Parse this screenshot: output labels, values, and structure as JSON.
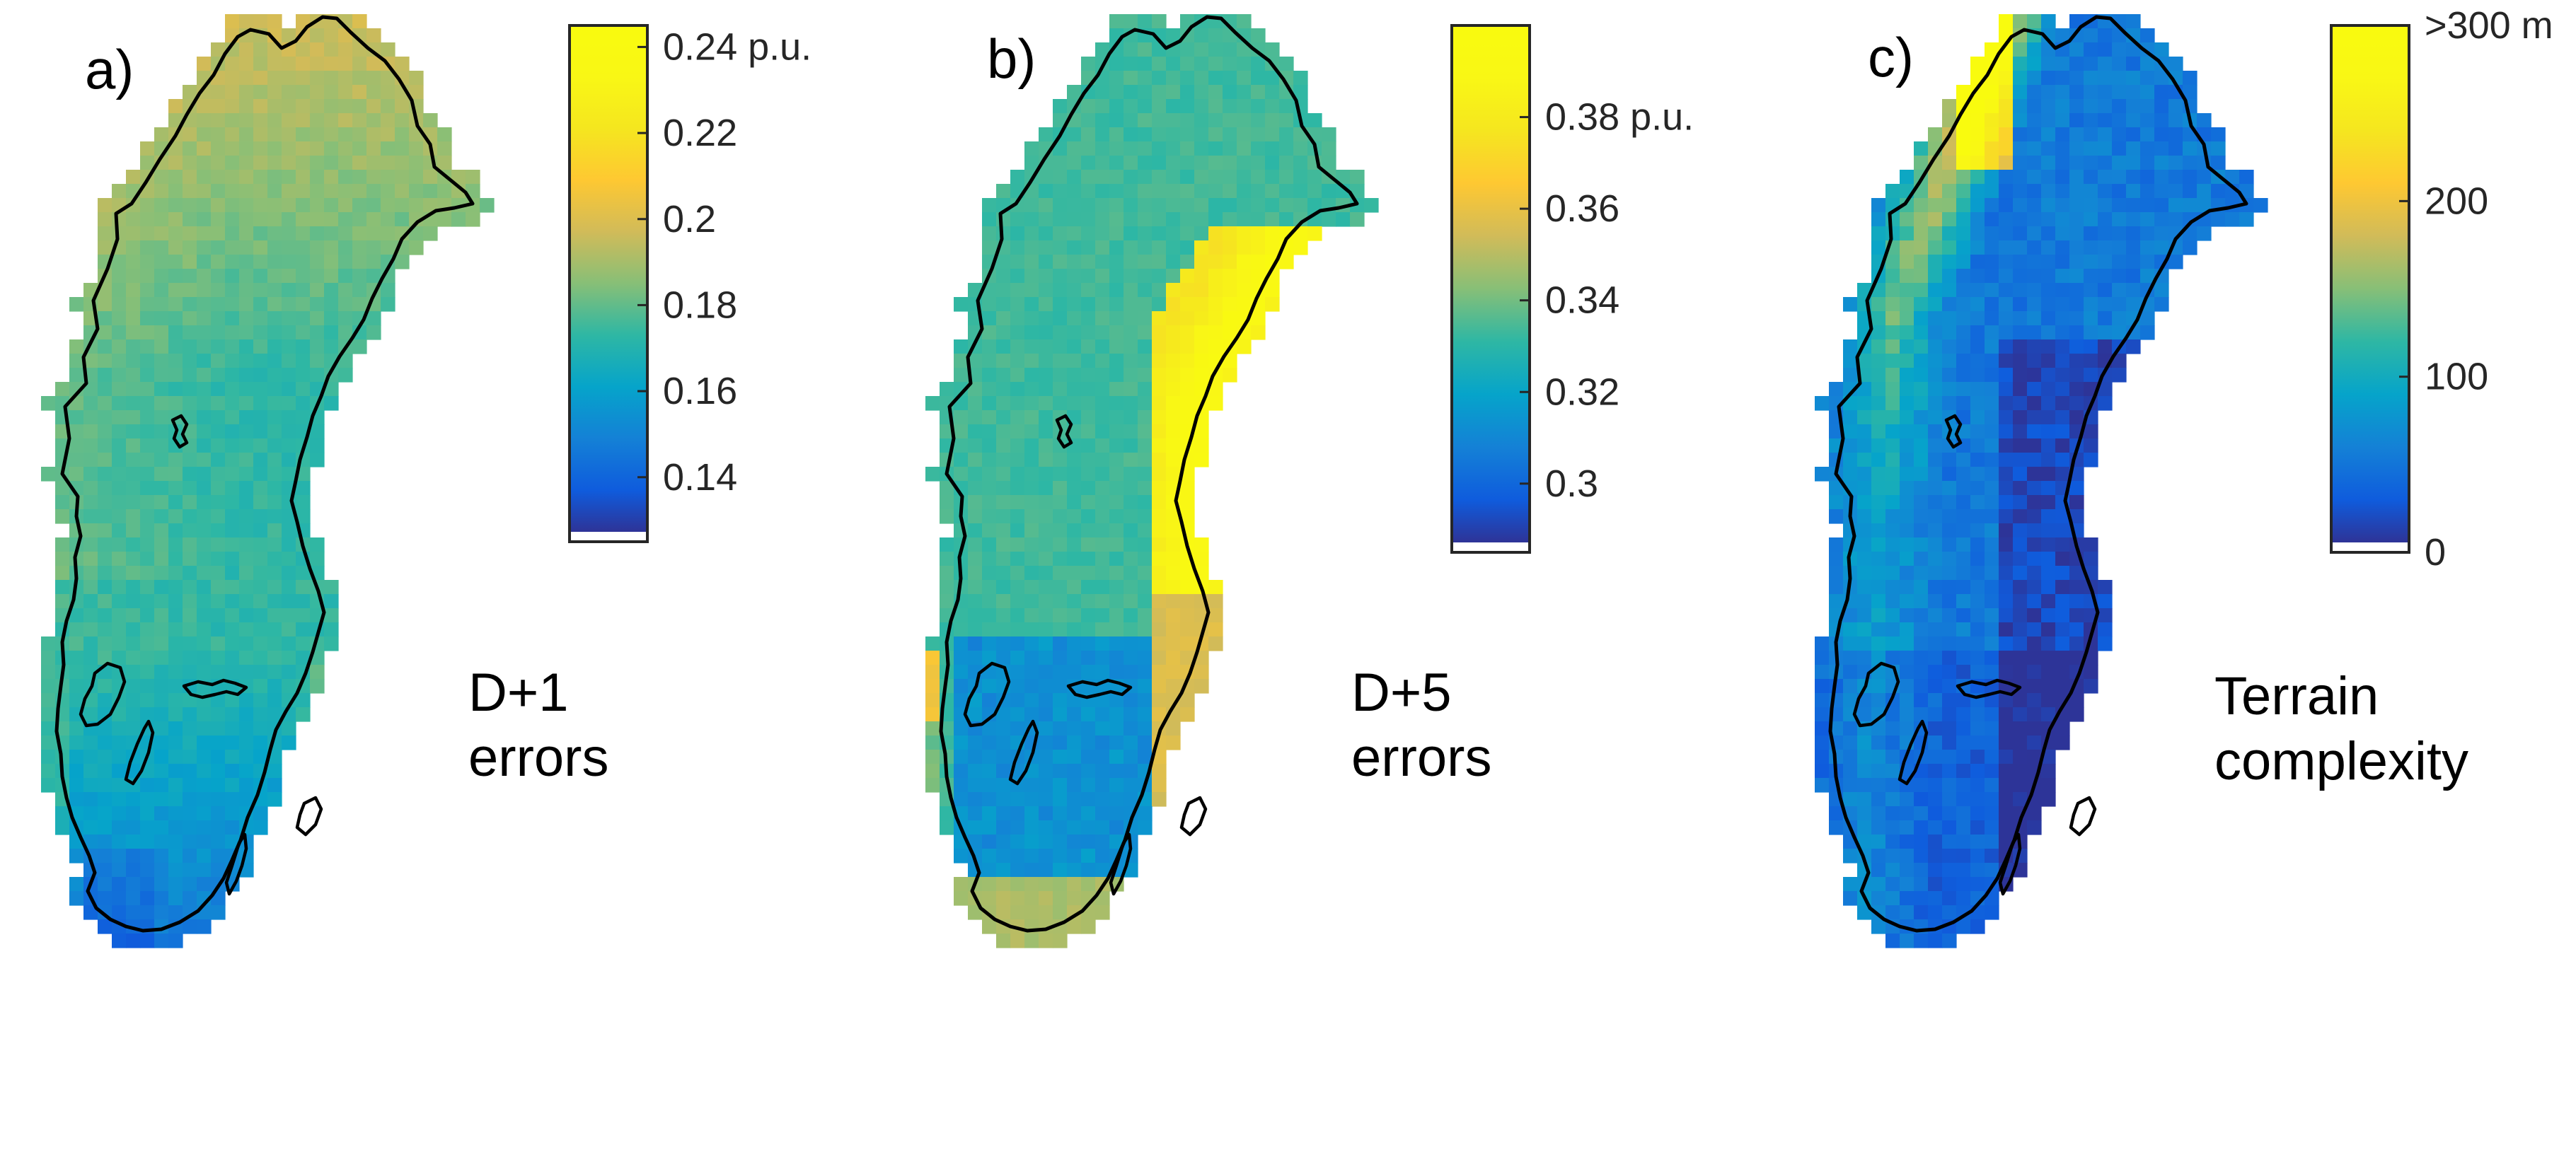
{
  "panels": [
    {
      "id": "a",
      "letter": "a)",
      "label_lines": [
        "D+1",
        "errors"
      ],
      "variable": "D+1 errors",
      "field": "d1",
      "colorbar": {
        "colormap": "parula",
        "range": [
          0.125,
          0.245
        ],
        "ticks": [
          {
            "value": 0.24,
            "text": "0.24 p.u."
          },
          {
            "value": 0.22,
            "text": "0.22"
          },
          {
            "value": 0.2,
            "text": "0.2"
          },
          {
            "value": 0.18,
            "text": "0.18"
          },
          {
            "value": 0.16,
            "text": "0.16"
          },
          {
            "value": 0.14,
            "text": "0.14"
          }
        ]
      }
    },
    {
      "id": "b",
      "letter": "b)",
      "label_lines": [
        "D+5",
        "errors"
      ],
      "variable": "D+5 errors",
      "field": "d5",
      "colorbar": {
        "colormap": "parula",
        "range": [
          0.285,
          0.4
        ],
        "ticks": [
          {
            "value": 0.38,
            "text": "0.38 p.u."
          },
          {
            "value": 0.36,
            "text": "0.36"
          },
          {
            "value": 0.34,
            "text": "0.34"
          },
          {
            "value": 0.32,
            "text": "0.32"
          },
          {
            "value": 0.3,
            "text": "0.3"
          }
        ]
      }
    },
    {
      "id": "c",
      "letter": "c)",
      "label_lines": [
        "Terrain",
        "complexity"
      ],
      "variable": "Terrain complexity",
      "field": "terrain",
      "colorbar": {
        "colormap": "parula",
        "range": [
          0,
          300
        ],
        "ticks": [
          {
            "value": 300,
            "text": ">300 m"
          },
          {
            "value": 200,
            "text": "200"
          },
          {
            "value": 100,
            "text": "100"
          },
          {
            "value": 0,
            "text": "0"
          }
        ]
      }
    }
  ]
}
